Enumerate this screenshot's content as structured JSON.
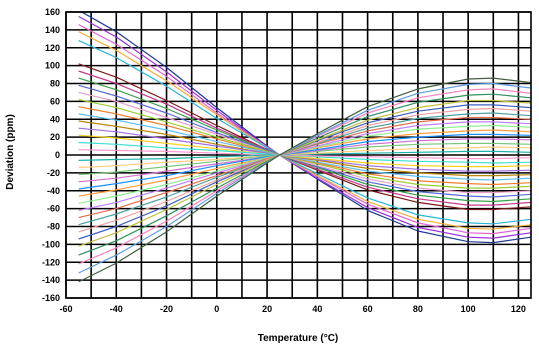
{
  "chart_data": {
    "type": "line",
    "title": "",
    "xlabel": "Temperature (°C)",
    "ylabel": "Deviation (ppm)",
    "xlim": [
      -60,
      125
    ],
    "ylim": [
      -160,
      160
    ],
    "x_ticks": [
      -60,
      -40,
      -20,
      0,
      20,
      40,
      60,
      80,
      100,
      120
    ],
    "x_tick_labels": [
      "-60",
      "-40",
      "-20",
      "0",
      "20",
      "40",
      "60",
      "80",
      "100",
      "120"
    ],
    "y_ticks": [
      160,
      140,
      120,
      100,
      80,
      60,
      40,
      20,
      0,
      -20,
      -40,
      -60,
      -80,
      -100,
      -120,
      -140,
      -160
    ],
    "y_tick_labels": [
      "160",
      "140",
      "120",
      "100",
      "80",
      "60",
      "40",
      "20",
      "0",
      "-20",
      "-40",
      "-60",
      "-80",
      "-100",
      "-120",
      "-140",
      "-160"
    ],
    "grid": true,
    "minor_x_gridlines_every": 10,
    "legend": "none",
    "curve_family": {
      "description_of_shape": "cubic temperature-deviation curves all crossing 0 ppm at 25 °C",
      "pivot_x": 25,
      "x": [
        -55,
        -40,
        -20,
        0,
        20,
        25,
        40,
        60,
        80,
        100,
        110,
        125
      ]
    },
    "series": [
      {
        "color": "#1f3a93",
        "values": [
          162,
          138,
          98,
          53,
          10,
          0,
          -27,
          -62,
          -85,
          -97,
          -98,
          -92
        ]
      },
      {
        "color": "#9b30d9",
        "values": [
          155,
          132,
          93,
          50,
          9,
          0,
          -26,
          -59,
          -81,
          -92,
          -93,
          -87
        ]
      },
      {
        "color": "#e066d6",
        "values": [
          146,
          124,
          88,
          47,
          9,
          0,
          -24,
          -55,
          -76,
          -87,
          -88,
          -82
        ]
      },
      {
        "color": "#f2b03a",
        "values": [
          138,
          117,
          83,
          45,
          8,
          0,
          -23,
          -52,
          -72,
          -82,
          -83,
          -78
        ]
      },
      {
        "color": "#29b6d6",
        "values": [
          128,
          109,
          77,
          41,
          8,
          0,
          -21,
          -48,
          -67,
          -76,
          -77,
          -72
        ]
      },
      {
        "color": "#7a1a1a",
        "values": [
          102,
          87,
          61,
          33,
          6,
          0,
          -17,
          -39,
          -53,
          -61,
          -61,
          -58
        ]
      },
      {
        "color": "#c23b8a",
        "values": [
          94,
          80,
          57,
          30,
          6,
          0,
          -16,
          -36,
          -49,
          -56,
          -56,
          -53
        ]
      },
      {
        "color": "#3aa04a",
        "values": [
          86,
          73,
          52,
          28,
          5,
          0,
          -14,
          -33,
          -45,
          -51,
          -52,
          -49
        ]
      },
      {
        "color": "#5b6bd6",
        "values": [
          78,
          66,
          47,
          25,
          5,
          0,
          -13,
          -30,
          -41,
          -46,
          -47,
          -44
        ]
      },
      {
        "color": "#e8a0c8",
        "values": [
          70,
          60,
          42,
          23,
          4,
          0,
          -12,
          -27,
          -37,
          -42,
          -42,
          -40
        ]
      },
      {
        "color": "#9acd32",
        "values": [
          62,
          53,
          37,
          20,
          4,
          0,
          -10,
          -24,
          -33,
          -37,
          -37,
          -35
        ]
      },
      {
        "color": "#f08030",
        "values": [
          54,
          46,
          33,
          18,
          3,
          0,
          -9,
          -21,
          -29,
          -32,
          -33,
          -31
        ]
      },
      {
        "color": "#60c0f0",
        "values": [
          46,
          39,
          28,
          15,
          3,
          0,
          -8,
          -18,
          -24,
          -27,
          -28,
          -26
        ]
      },
      {
        "color": "#b8860b",
        "values": [
          38,
          32,
          23,
          12,
          2,
          0,
          -6,
          -15,
          -20,
          -23,
          -23,
          -22
        ]
      },
      {
        "color": "#a070e0",
        "values": [
          30,
          26,
          18,
          10,
          2,
          0,
          -5,
          -12,
          -16,
          -18,
          -18,
          -17
        ]
      },
      {
        "color": "#f5d020",
        "values": [
          22,
          19,
          13,
          7,
          1,
          0,
          -4,
          -9,
          -12,
          -13,
          -13,
          -12
        ]
      },
      {
        "color": "#40e0d0",
        "values": [
          14,
          12,
          8,
          5,
          1,
          0,
          -2,
          -5,
          -7,
          -8,
          -9,
          -8
        ]
      },
      {
        "color": "#ff9ad5",
        "values": [
          6,
          5,
          4,
          2,
          0,
          0,
          -1,
          -2,
          -3,
          -4,
          -4,
          -3
        ]
      },
      {
        "color": "#20b2aa",
        "values": [
          -6,
          -5,
          -4,
          -2,
          0,
          0,
          1,
          2,
          3,
          4,
          4,
          3
        ]
      },
      {
        "color": "#ffcc80",
        "values": [
          -14,
          -12,
          -8,
          -5,
          -1,
          0,
          2,
          5,
          7,
          8,
          9,
          8
        ]
      },
      {
        "color": "#7cc87c",
        "values": [
          -22,
          -19,
          -13,
          -7,
          -1,
          0,
          4,
          9,
          12,
          13,
          13,
          12
        ]
      },
      {
        "color": "#d070d0",
        "values": [
          -30,
          -26,
          -18,
          -10,
          -2,
          0,
          5,
          12,
          16,
          18,
          18,
          17
        ]
      },
      {
        "color": "#1e90ff",
        "values": [
          -38,
          -32,
          -23,
          -12,
          -2,
          0,
          6,
          15,
          20,
          23,
          23,
          22
        ]
      },
      {
        "color": "#ffa040",
        "values": [
          -46,
          -39,
          -28,
          -15,
          -3,
          0,
          8,
          18,
          24,
          27,
          28,
          26
        ]
      },
      {
        "color": "#90ee90",
        "values": [
          -54,
          -46,
          -33,
          -18,
          -3,
          0,
          9,
          21,
          29,
          32,
          33,
          31
        ]
      },
      {
        "color": "#c080ff",
        "values": [
          -62,
          -53,
          -37,
          -20,
          -4,
          0,
          10,
          24,
          33,
          37,
          37,
          35
        ]
      },
      {
        "color": "#e07050",
        "values": [
          -70,
          -60,
          -42,
          -23,
          -4,
          0,
          12,
          27,
          37,
          42,
          42,
          40
        ]
      },
      {
        "color": "#50a0a0",
        "values": [
          -78,
          -66,
          -47,
          -25,
          -5,
          0,
          13,
          30,
          41,
          46,
          47,
          44
        ]
      },
      {
        "color": "#f0a0a0",
        "values": [
          -86,
          -73,
          -52,
          -28,
          -5,
          0,
          14,
          33,
          45,
          51,
          52,
          49
        ]
      },
      {
        "color": "#4060c0",
        "values": [
          -94,
          -80,
          -57,
          -30,
          -6,
          0,
          16,
          36,
          49,
          56,
          56,
          53
        ]
      },
      {
        "color": "#c0c040",
        "values": [
          -102,
          -87,
          -61,
          -33,
          -6,
          0,
          17,
          39,
          53,
          61,
          61,
          58
        ]
      },
      {
        "color": "#2f8f5f",
        "values": [
          -112,
          -96,
          -68,
          -37,
          -7,
          0,
          19,
          43,
          59,
          67,
          68,
          64
        ]
      },
      {
        "color": "#ff7fbf",
        "values": [
          -122,
          -104,
          -74,
          -40,
          -8,
          0,
          21,
          47,
          64,
          73,
          74,
          69
        ]
      },
      {
        "color": "#5f9fdf",
        "values": [
          -132,
          -112,
          -80,
          -43,
          -8,
          0,
          22,
          50,
          69,
          79,
          80,
          75
        ]
      },
      {
        "color": "#3f5f3f",
        "values": [
          -142,
          -121,
          -86,
          -46,
          -9,
          0,
          24,
          54,
          74,
          85,
          86,
          81
        ]
      }
    ]
  }
}
